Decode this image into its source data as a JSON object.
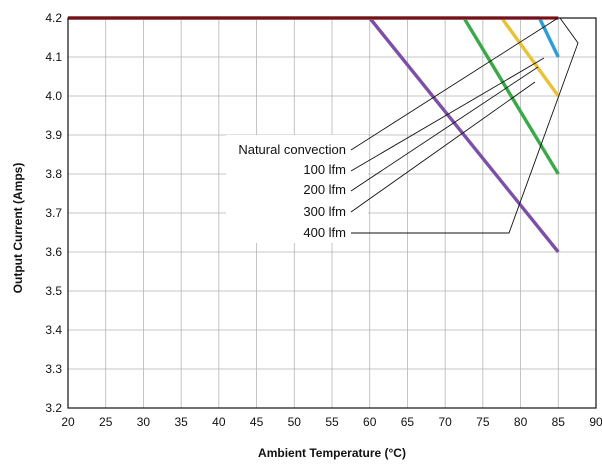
{
  "chart_data": {
    "type": "line",
    "title": "",
    "xlabel": "Ambient Temperature (°C)",
    "ylabel": "Output Current (Amps)",
    "xlim": [
      20,
      90
    ],
    "ylim": [
      3.2,
      4.2
    ],
    "x_ticks": [
      "20",
      "25",
      "30",
      "35",
      "40",
      "45",
      "50",
      "55",
      "60",
      "65",
      "70",
      "75",
      "80",
      "85",
      "90"
    ],
    "y_ticks": [
      "3.2",
      "3.3",
      "3.4",
      "3.5",
      "3.6",
      "3.7",
      "3.8",
      "3.9",
      "4.0",
      "4.1",
      "4.2"
    ],
    "grid": true,
    "legend_position": "center",
    "series": [
      {
        "name": "Natural convection",
        "color": "#7d4fa6",
        "x": [
          20,
          60,
          85
        ],
        "y": [
          4.2,
          4.2,
          3.6
        ]
      },
      {
        "name": "100 lfm",
        "color": "#3aaa48",
        "x": [
          20,
          72.5,
          85
        ],
        "y": [
          4.2,
          4.2,
          3.8
        ]
      },
      {
        "name": "200 lfm",
        "color": "#e8c234",
        "x": [
          20,
          77.5,
          85
        ],
        "y": [
          4.2,
          4.2,
          4.0
        ]
      },
      {
        "name": "300 lfm",
        "color": "#2a9fd8",
        "x": [
          20,
          82.5,
          85
        ],
        "y": [
          4.2,
          4.2,
          4.1
        ]
      },
      {
        "name": "400 lfm",
        "color": "#c8303c",
        "x": [
          20,
          85
        ],
        "y": [
          4.2,
          4.2
        ]
      }
    ]
  }
}
